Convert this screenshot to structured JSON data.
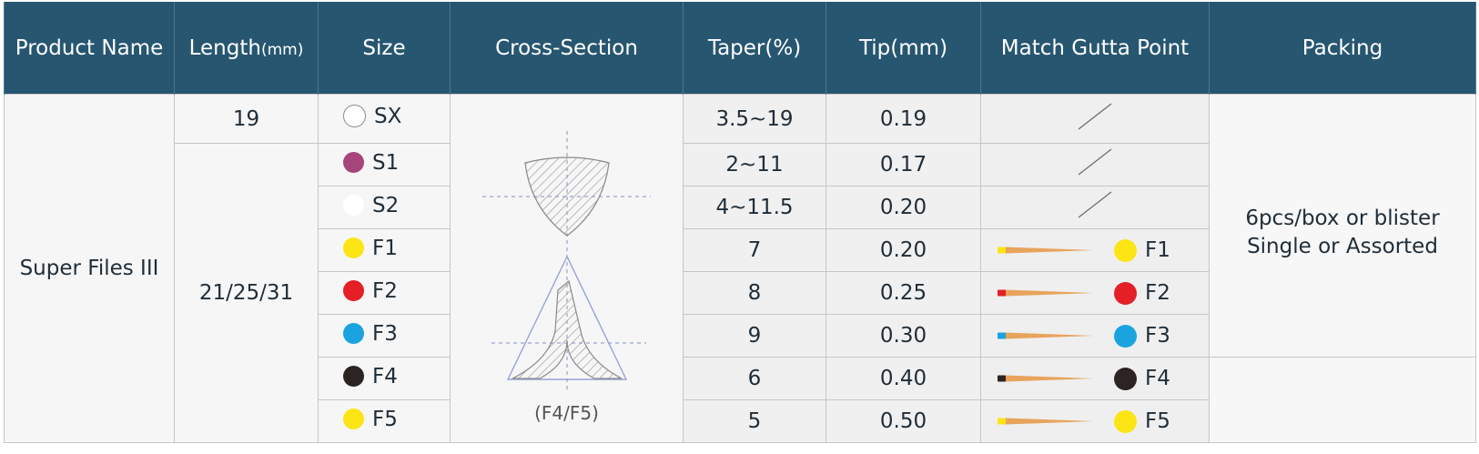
{
  "headers": {
    "product_name": "Product Name",
    "length": "Length",
    "length_unit": "(mm)",
    "size": "Size",
    "cross_section": "Cross-Section",
    "taper": "Taper(%)",
    "tip": "Tip(mm)",
    "gutta": "Match Gutta Point",
    "packing": "Packing"
  },
  "product_name": "Super Files III",
  "lengths": [
    "19",
    "21/25/31"
  ],
  "cross_section_label": "(F4/F5)",
  "packing_line1": "6pcs/box or blister",
  "packing_line2": "Single or Assorted",
  "rows": [
    {
      "size": "SX",
      "color": "#ffffff",
      "taper": "3.5~19",
      "tip": "0.19",
      "gutta": ""
    },
    {
      "size": "S1",
      "color": "#a5457c",
      "taper": "2~11",
      "tip": "0.17",
      "gutta": ""
    },
    {
      "size": "S2",
      "color": "#ffffff",
      "taper": "4~11.5",
      "tip": "0.20",
      "gutta": ""
    },
    {
      "size": "F1",
      "color": "#fbe515",
      "taper": "7",
      "tip": "0.20",
      "gutta": "F1"
    },
    {
      "size": "F2",
      "color": "#e41f26",
      "taper": "8",
      "tip": "0.25",
      "gutta": "F2"
    },
    {
      "size": "F3",
      "color": "#1ba3e0",
      "taper": "9",
      "tip": "0.30",
      "gutta": "F3"
    },
    {
      "size": "F4",
      "color": "#2d2322",
      "taper": "6",
      "tip": "0.40",
      "gutta": "F4"
    },
    {
      "size": "F5",
      "color": "#fbe515",
      "taper": "5",
      "tip": "0.50",
      "gutta": "F5"
    }
  ]
}
